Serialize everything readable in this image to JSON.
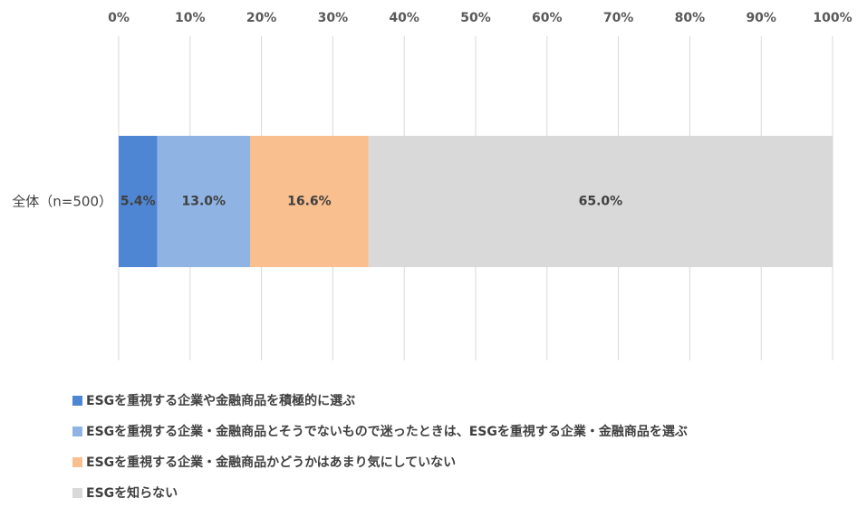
{
  "chart_data": {
    "type": "bar",
    "orientation": "horizontal",
    "stacked": true,
    "categories": [
      "全体（n=500）"
    ],
    "x_axis": {
      "position": "top",
      "range": [
        0,
        100
      ],
      "tick_labels": [
        "0%",
        "10%",
        "20%",
        "30%",
        "40%",
        "50%",
        "60%",
        "70%",
        "80%",
        "90%",
        "100%"
      ]
    },
    "grid": true,
    "legend_position": "bottom-left",
    "series": [
      {
        "name": "ESGを重視する企業や金融商品を積極的に選ぶ",
        "values": [
          5.4
        ],
        "label": "5.4%",
        "color": "#4f86d4"
      },
      {
        "name": "ESGを重視する企業・金融商品とそうでないもので迷ったときは、ESGを重視する企業・金融商品を選ぶ",
        "values": [
          13.0
        ],
        "label": "13.0%",
        "color": "#8fb4e3"
      },
      {
        "name": "ESGを重視する企業・金融商品かどうかはあまり気にしていない",
        "values": [
          16.6
        ],
        "label": "16.6%",
        "color": "#f9bf8f"
      },
      {
        "name": "ESGを知らない",
        "values": [
          65.0
        ],
        "label": "65.0%",
        "color": "#d9d9d9"
      }
    ]
  }
}
